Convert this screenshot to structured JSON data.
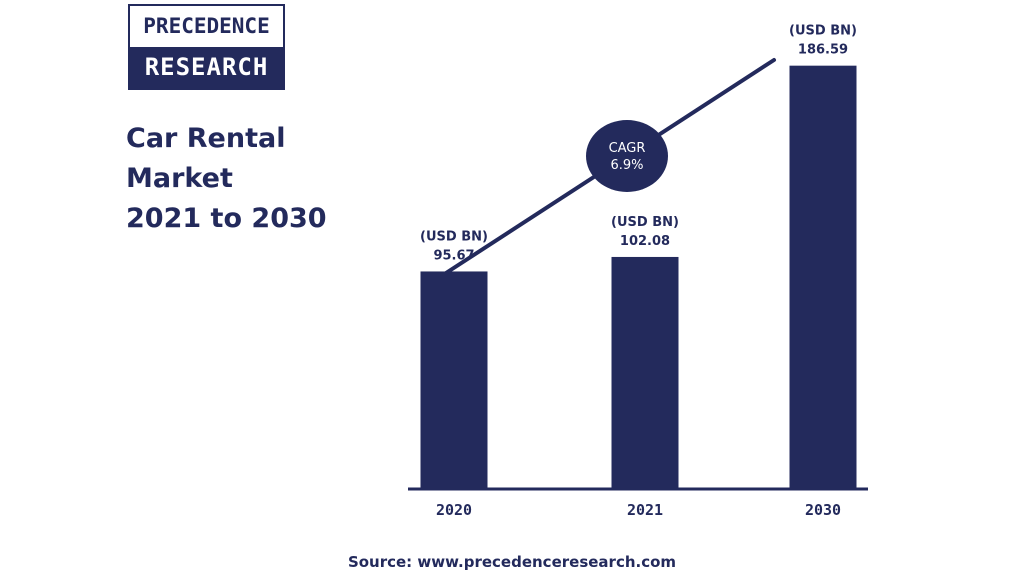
{
  "logo": {
    "line1": "PRECEDENCE",
    "line2": "RESEARCH"
  },
  "title_lines": [
    "Car Rental",
    "Market",
    "2021 to 2030"
  ],
  "source": "Source: www.precedenceresearch.com",
  "colors": {
    "bar": "#232a5c",
    "text": "#232a5c",
    "axis": "#232a5c"
  },
  "chart_data": {
    "type": "bar",
    "title": "Car Rental Market 2021 to 2030",
    "categories": [
      "2020",
      "2021",
      "2030"
    ],
    "values": [
      95.67,
      102.08,
      186.59
    ],
    "value_unit_label": "(USD BN)",
    "data_labels": [
      "95.67",
      "102.08",
      "186.59"
    ],
    "ylim": [
      0,
      205
    ],
    "grid": false,
    "annotation": {
      "type": "trend-line-with-badge",
      "label_line1": "CAGR",
      "label_line2": "6.9%"
    }
  }
}
